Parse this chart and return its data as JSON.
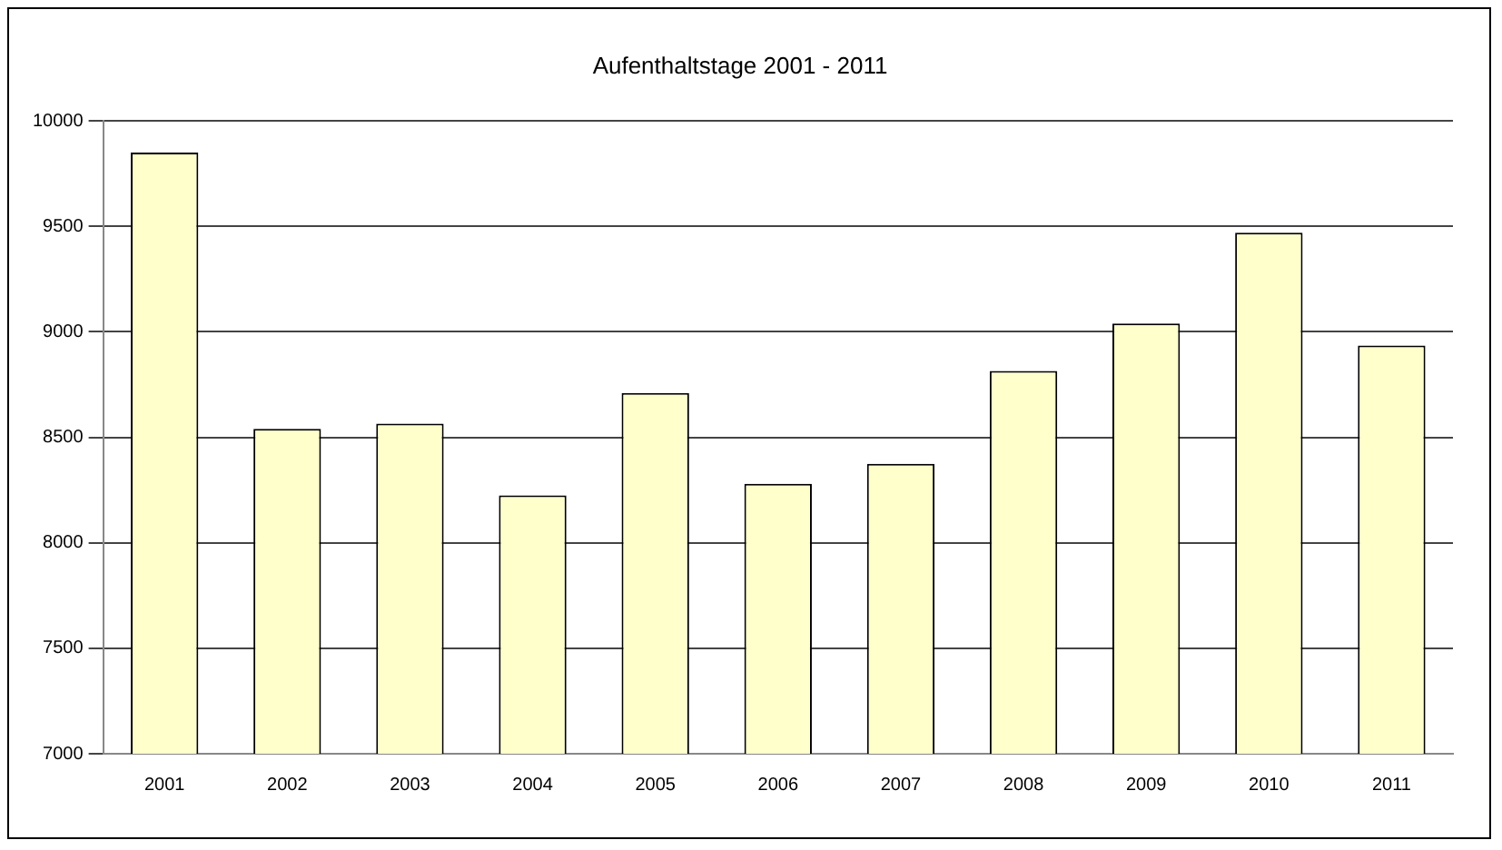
{
  "chart_data": {
    "type": "bar",
    "title": "Aufenthaltstage 2001 - 2011",
    "categories": [
      "2001",
      "2002",
      "2003",
      "2004",
      "2005",
      "2006",
      "2007",
      "2008",
      "2009",
      "2010",
      "2011"
    ],
    "values": [
      9850,
      8540,
      8565,
      8225,
      8710,
      8280,
      8375,
      8815,
      9040,
      9470,
      8935
    ],
    "color": "#ffffcc",
    "ylim": [
      7000,
      10000
    ],
    "yticks": [
      7000,
      7500,
      8000,
      8500,
      9000,
      9500,
      10000
    ],
    "grid": "y"
  }
}
